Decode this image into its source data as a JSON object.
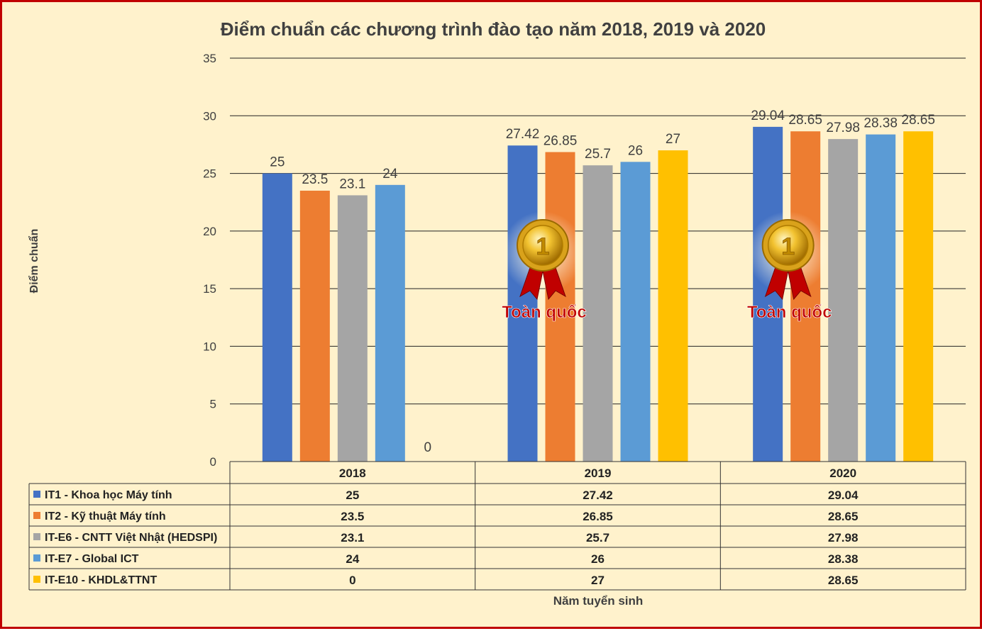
{
  "chart_data": {
    "type": "bar",
    "title": "Điểm chuẩn các chương trình đào tạo năm 2018, 2019 và 2020",
    "xlabel": "Năm tuyển sinh",
    "ylabel": "Điểm chuẩn",
    "ylim": [
      0,
      35
    ],
    "yticks": [
      0,
      5,
      10,
      15,
      20,
      25,
      30,
      35
    ],
    "grid": true,
    "legend": "data-table",
    "categories": [
      "2018",
      "2019",
      "2020"
    ],
    "series": [
      {
        "name": "IT1 - Khoa học Máy tính",
        "color": "#4472c4",
        "values": [
          25,
          27.42,
          29.04
        ],
        "labels": [
          "25",
          "27.42",
          "29.04"
        ]
      },
      {
        "name": "IT2 - Kỹ thuật Máy tính",
        "color": "#ed7d31",
        "values": [
          23.5,
          26.85,
          28.65
        ],
        "labels": [
          "23.5",
          "26.85",
          "28.65"
        ]
      },
      {
        "name": "IT-E6 - CNTT Việt Nhật (HEDSPI)",
        "color": "#a5a5a5",
        "values": [
          23.1,
          25.7,
          27.98
        ],
        "labels": [
          "23.1",
          "25.7",
          "27.98"
        ]
      },
      {
        "name": "IT-E7 - Global ICT",
        "color": "#5b9bd5",
        "values": [
          24,
          26,
          28.38
        ],
        "labels": [
          "24",
          "26",
          "28.38"
        ]
      },
      {
        "name": "IT-E10 - KHDL&TTNT",
        "color": "#ffc000",
        "values": [
          0,
          27,
          28.65
        ],
        "labels": [
          "0",
          "27",
          "28.65"
        ]
      }
    ],
    "annotations": [
      {
        "category": "2019",
        "text": "Toàn quốc",
        "medal_number": "1"
      },
      {
        "category": "2020",
        "text": "Toàn quốc",
        "medal_number": "1"
      }
    ]
  }
}
